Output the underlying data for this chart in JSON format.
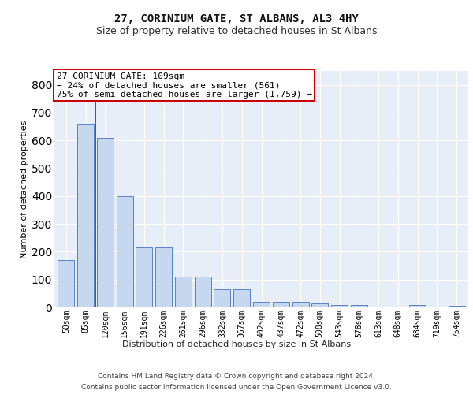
{
  "title1": "27, CORINIUM GATE, ST ALBANS, AL3 4HY",
  "title2": "Size of property relative to detached houses in St Albans",
  "xlabel": "Distribution of detached houses by size in St Albans",
  "ylabel": "Number of detached properties",
  "bar_labels": [
    "50sqm",
    "85sqm",
    "120sqm",
    "156sqm",
    "191sqm",
    "226sqm",
    "261sqm",
    "296sqm",
    "332sqm",
    "367sqm",
    "402sqm",
    "437sqm",
    "472sqm",
    "508sqm",
    "543sqm",
    "578sqm",
    "613sqm",
    "648sqm",
    "684sqm",
    "719sqm",
    "754sqm"
  ],
  "bar_values": [
    170,
    660,
    610,
    400,
    215,
    215,
    110,
    110,
    65,
    65,
    20,
    20,
    20,
    15,
    8,
    8,
    2,
    2,
    8,
    2,
    5
  ],
  "bar_color": "#c5d8f0",
  "bar_edge_color": "#4472c4",
  "vline_x_idx": 1,
  "vline_color": "#cc0000",
  "annotation_line1": "27 CORINIUM GATE: 109sqm",
  "annotation_line2": "← 24% of detached houses are smaller (561)",
  "annotation_line3": "75% of semi-detached houses are larger (1,759) →",
  "annotation_box_color": "#cc0000",
  "ylim": [
    0,
    850
  ],
  "yticks": [
    0,
    100,
    200,
    300,
    400,
    500,
    600,
    700,
    800
  ],
  "footer_line1": "Contains HM Land Registry data © Crown copyright and database right 2024.",
  "footer_line2": "Contains public sector information licensed under the Open Government Licence v3.0.",
  "background_color": "#e8eef8",
  "grid_color": "#ffffff",
  "title1_fontsize": 10,
  "title2_fontsize": 9,
  "xlabel_fontsize": 8,
  "ylabel_fontsize": 8,
  "tick_fontsize": 7,
  "annotation_fontsize": 8,
  "footer_fontsize": 6.5
}
